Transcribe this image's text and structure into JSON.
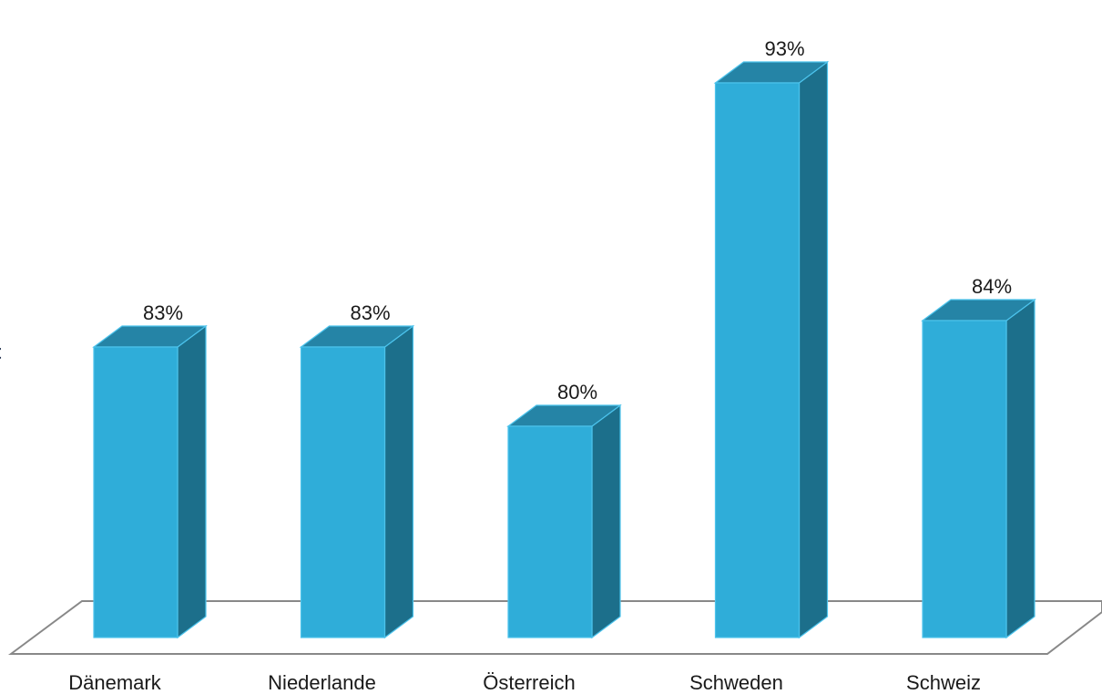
{
  "side_text": "t",
  "chart_data": {
    "type": "bar",
    "style": "3d-column",
    "categories": [
      "Dänemark",
      "Niederlande",
      "Österreich",
      "Schweden",
      "Schweiz"
    ],
    "values": [
      83,
      83,
      80,
      93,
      84
    ],
    "value_labels": [
      "83%",
      "83%",
      "80%",
      "93%",
      "84%"
    ],
    "unit": "%",
    "ylim": [
      72,
      94
    ],
    "grid": false,
    "legend": "none",
    "colors": {
      "front": "#2fadd9",
      "side": "#1c6f8b",
      "top": "#2584a6",
      "edge": "#4cc3ec",
      "floor": "#888888"
    }
  }
}
